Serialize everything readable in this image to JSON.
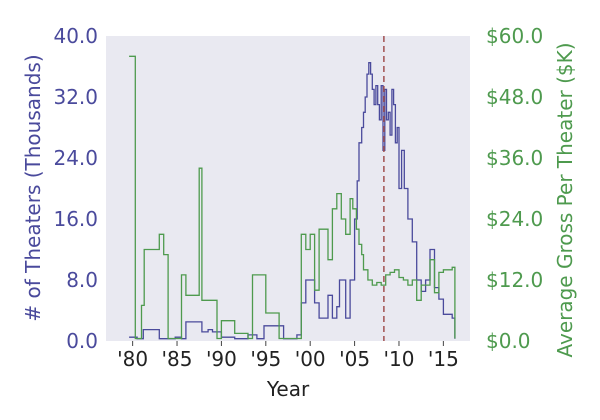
{
  "chart_data": {
    "type": "line",
    "step": true,
    "grid": false,
    "xlabel": "Year",
    "x_ticks": [
      {
        "value": 1980,
        "label": "'80"
      },
      {
        "value": 1985,
        "label": "'85"
      },
      {
        "value": 1990,
        "label": "'90"
      },
      {
        "value": 1995,
        "label": "'95"
      },
      {
        "value": 2000,
        "label": "'00"
      },
      {
        "value": 2005,
        "label": "'05"
      },
      {
        "value": 2010,
        "label": "'10"
      },
      {
        "value": 2015,
        "label": "'15"
      }
    ],
    "xlim": [
      1977,
      2018
    ],
    "reference_line": {
      "x": 2008.3,
      "color": "#a05050",
      "style": "dashed"
    },
    "y_left": {
      "label": "# of Theaters (Thousands)",
      "range": [
        0,
        40
      ],
      "ticks": [
        0,
        8,
        16,
        24,
        32,
        40
      ],
      "tick_labels": [
        "0.0",
        "8.0",
        "16.0",
        "24.0",
        "32.0",
        "40.0"
      ],
      "color": "#4a4a9c"
    },
    "y_right": {
      "label": "Average Gross Per Theater ($K)",
      "range": [
        0,
        60
      ],
      "ticks": [
        0,
        12,
        24,
        36,
        48,
        60
      ],
      "tick_labels": [
        "$0.0",
        "$12.0",
        "$24.0",
        "$36.0",
        "$48.0",
        "$60.0"
      ],
      "color": "#4e9a4e"
    },
    "series": [
      {
        "axis": "left",
        "color": "#4a4a9c",
        "points": [
          [
            1979.6,
            0.5
          ],
          [
            1980.5,
            0.3
          ],
          [
            1981.2,
            1.5
          ],
          [
            1983.0,
            0.3
          ],
          [
            1984.8,
            0.5
          ],
          [
            1985.5,
            0.3
          ],
          [
            1986.0,
            2.5
          ],
          [
            1987.5,
            2.5
          ],
          [
            1987.8,
            1.2
          ],
          [
            1988.5,
            1.5
          ],
          [
            1989.0,
            1.2
          ],
          [
            1990.0,
            0.5
          ],
          [
            1991.5,
            0.3
          ],
          [
            1993.0,
            0.8
          ],
          [
            1994.0,
            0.3
          ],
          [
            1994.8,
            2.0
          ],
          [
            1996.5,
            2.0
          ],
          [
            1997.0,
            0.3
          ],
          [
            1998.5,
            0.8
          ],
          [
            1999.0,
            5.0
          ],
          [
            1999.5,
            8.0
          ],
          [
            2000.5,
            5.0
          ],
          [
            2001.0,
            3.0
          ],
          [
            2002.0,
            6.0
          ],
          [
            2002.5,
            3.0
          ],
          [
            2003.0,
            4.5
          ],
          [
            2003.3,
            8.0
          ],
          [
            2004.0,
            3.0
          ],
          [
            2004.5,
            8.0
          ],
          [
            2005.0,
            16.0
          ],
          [
            2005.3,
            21.0
          ],
          [
            2005.5,
            26.0
          ],
          [
            2005.8,
            28.0
          ],
          [
            2006.0,
            30.0
          ],
          [
            2006.2,
            32.0
          ],
          [
            2006.4,
            35.0
          ],
          [
            2006.6,
            36.5
          ],
          [
            2006.8,
            35.0
          ],
          [
            2007.0,
            33.0
          ],
          [
            2007.2,
            31.0
          ],
          [
            2007.4,
            33.5
          ],
          [
            2007.6,
            31.0
          ],
          [
            2007.8,
            29.0
          ],
          [
            2008.0,
            33.5
          ],
          [
            2008.2,
            25.0
          ],
          [
            2008.4,
            33.0
          ],
          [
            2008.6,
            29.0
          ],
          [
            2008.8,
            30.0
          ],
          [
            2009.0,
            27.0
          ],
          [
            2009.2,
            33.0
          ],
          [
            2009.4,
            31.0
          ],
          [
            2009.6,
            26.0
          ],
          [
            2009.8,
            28.0
          ],
          [
            2010.0,
            20.0
          ],
          [
            2010.3,
            25.0
          ],
          [
            2010.6,
            20.0
          ],
          [
            2011.0,
            16.0
          ],
          [
            2011.5,
            13.0
          ],
          [
            2012.0,
            8.0
          ],
          [
            2012.5,
            6.5
          ],
          [
            2013.0,
            8.0
          ],
          [
            2013.5,
            12.0
          ],
          [
            2014.0,
            7.0
          ],
          [
            2014.5,
            5.5
          ],
          [
            2015.0,
            3.5
          ],
          [
            2016.0,
            3.0
          ],
          [
            2016.3,
            0.3
          ]
        ]
      },
      {
        "axis": "right",
        "color": "#4e9a4e",
        "points": [
          [
            1979.6,
            56.0
          ],
          [
            1980.3,
            0.5
          ],
          [
            1981.0,
            7.0
          ],
          [
            1981.3,
            18.0
          ],
          [
            1983.0,
            21.0
          ],
          [
            1983.5,
            17.0
          ],
          [
            1984.0,
            0.5
          ],
          [
            1985.5,
            13.0
          ],
          [
            1986.0,
            9.0
          ],
          [
            1987.5,
            34.0
          ],
          [
            1987.8,
            8.0
          ],
          [
            1989.0,
            8.0
          ],
          [
            1989.5,
            0.5
          ],
          [
            1990.0,
            4.0
          ],
          [
            1991.5,
            1.5
          ],
          [
            1993.0,
            0.5
          ],
          [
            1993.5,
            13.0
          ],
          [
            1995.0,
            5.5
          ],
          [
            1996.5,
            0.5
          ],
          [
            1998.5,
            0.5
          ],
          [
            1999.0,
            21.0
          ],
          [
            1999.5,
            18.0
          ],
          [
            2000.0,
            21.0
          ],
          [
            2000.5,
            10.0
          ],
          [
            2001.0,
            22.0
          ],
          [
            2002.0,
            16.0
          ],
          [
            2002.5,
            26.0
          ],
          [
            2003.0,
            29.0
          ],
          [
            2003.5,
            24.0
          ],
          [
            2004.0,
            21.0
          ],
          [
            2004.5,
            28.0
          ],
          [
            2004.8,
            26.0
          ],
          [
            2005.2,
            22.0
          ],
          [
            2005.5,
            19.0
          ],
          [
            2005.8,
            17.0
          ],
          [
            2006.0,
            14.0
          ],
          [
            2006.5,
            12.0
          ],
          [
            2007.0,
            11.0
          ],
          [
            2007.5,
            11.5
          ],
          [
            2008.0,
            11.0
          ],
          [
            2008.5,
            13.0
          ],
          [
            2009.0,
            13.5
          ],
          [
            2009.5,
            14.0
          ],
          [
            2010.0,
            12.5
          ],
          [
            2010.5,
            12.0
          ],
          [
            2011.0,
            11.0
          ],
          [
            2011.5,
            12.0
          ],
          [
            2012.0,
            8.0
          ],
          [
            2012.5,
            11.0
          ],
          [
            2013.5,
            16.0
          ],
          [
            2014.0,
            9.5
          ],
          [
            2014.5,
            13.5
          ],
          [
            2015.0,
            14.0
          ],
          [
            2016.0,
            14.5
          ],
          [
            2016.3,
            0.5
          ]
        ]
      }
    ]
  }
}
